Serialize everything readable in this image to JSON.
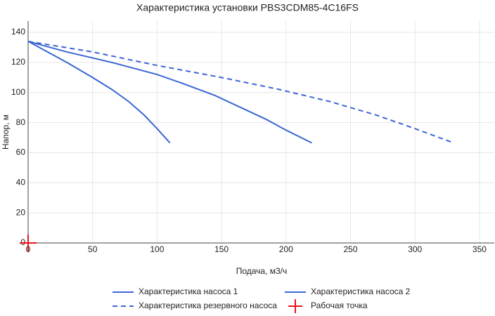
{
  "chart_data": {
    "type": "line",
    "title": "Характеристика установки PBS3CDM85-4C16FS",
    "x_label": "Подача, м3/ч",
    "y_label": "Напор, м",
    "xlim": [
      0,
      361.5
    ],
    "ylim": [
      0,
      147.5
    ],
    "xticks": [
      0,
      50,
      100,
      150,
      200,
      250,
      300,
      350
    ],
    "yticks": [
      0,
      20,
      40,
      60,
      80,
      100,
      120,
      140
    ],
    "grid": true,
    "series": [
      {
        "name": "Характеристика насоса 1",
        "color": "#3b66d4",
        "style": "solid",
        "x": [
          0,
          15,
          30,
          50,
          65,
          78,
          90,
          100,
          110
        ],
        "values": [
          134,
          127,
          120,
          110,
          102,
          94,
          85,
          76,
          66.5
        ]
      },
      {
        "name": "Характеристика насоса 2",
        "color": "#3b66d4",
        "style": "solid",
        "x": [
          0,
          30,
          65,
          100,
          120,
          145,
          165,
          185,
          200,
          220
        ],
        "values": [
          134,
          127,
          120,
          112,
          106,
          98,
          90,
          82,
          75,
          66.5
        ]
      },
      {
        "name": "Характеристика резервного насоса",
        "color": "#3b66d4",
        "style": "dash",
        "x": [
          0,
          50,
          100,
          150,
          195,
          234,
          270,
          300,
          330
        ],
        "values": [
          134,
          127,
          118,
          110,
          102,
          94,
          85,
          76,
          66.5
        ]
      },
      {
        "name": "Рабочая точка",
        "color": "#e8141c",
        "style": "cross",
        "x": [
          0
        ],
        "values": [
          0
        ]
      }
    ]
  }
}
